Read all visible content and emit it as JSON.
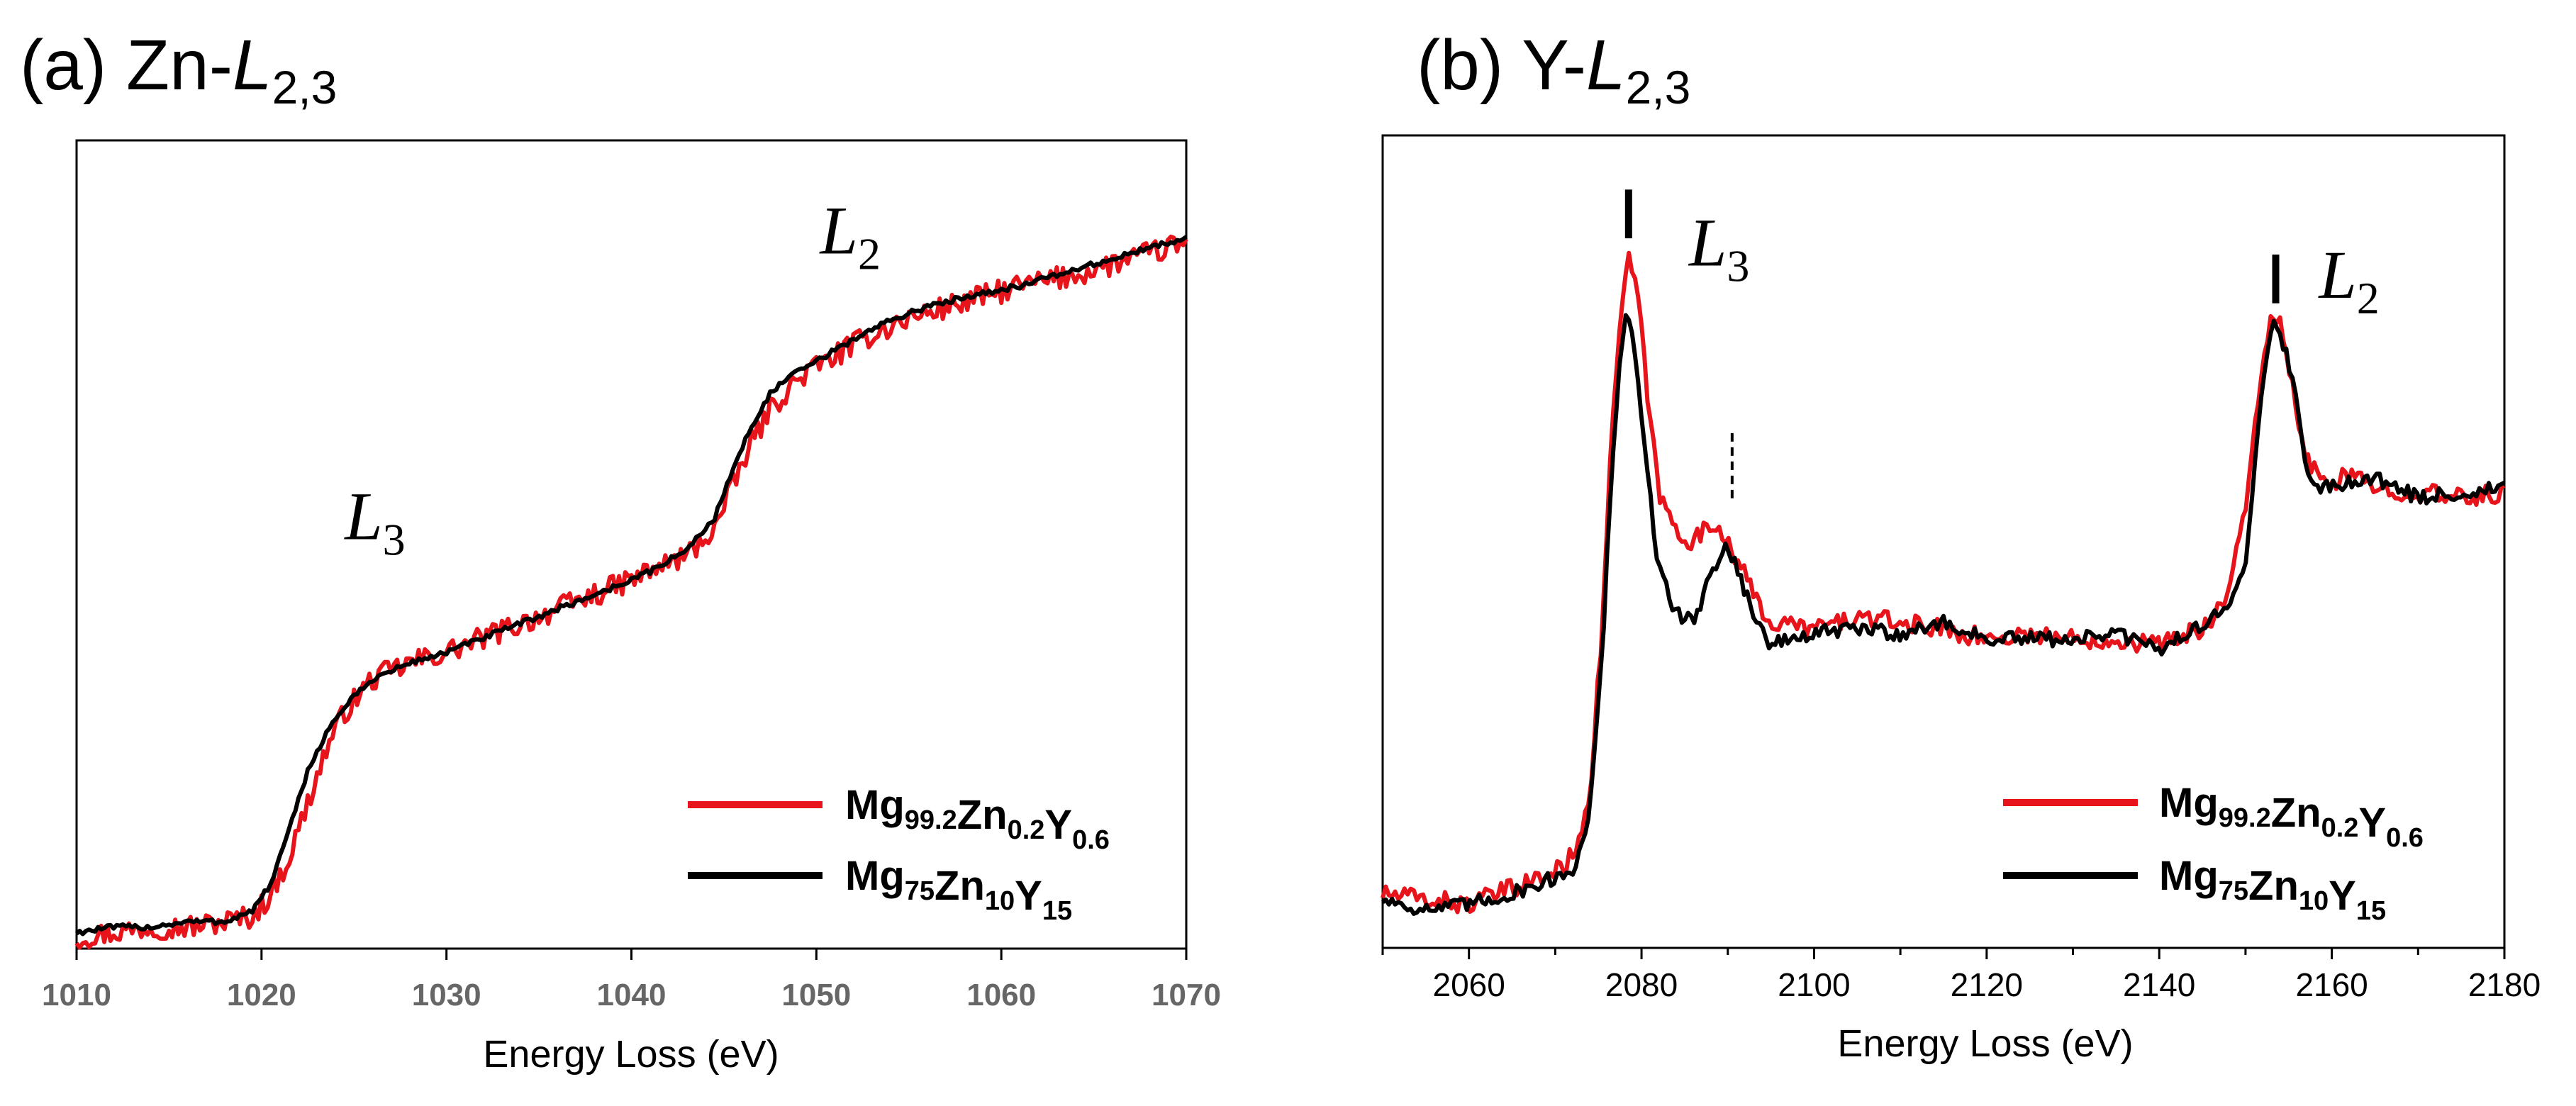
{
  "chart_data": [
    {
      "panel": "(a)",
      "title_prefix": "(a) Zn-",
      "title_italic": "L",
      "title_sub": "2,3",
      "type": "line",
      "xlabel": "Energy Loss (eV)",
      "ylabel": "",
      "xlim": [
        1010,
        1070
      ],
      "ylim": [
        0,
        1.5
      ],
      "xticks": [
        "1010",
        "1020",
        "1030",
        "1040",
        "1050",
        "1060",
        "1070"
      ],
      "grid": false,
      "legend_position": "bottom-right",
      "annotations": [
        {
          "main": "L",
          "sub": "3",
          "x": 1024.5,
          "y": 0.76
        },
        {
          "main": "L",
          "sub": "2",
          "x": 1050.2,
          "y": 1.29
        }
      ],
      "series": [
        {
          "name": "Mg99.2Zn0.2Y0.6",
          "legend_parts": [
            [
              "Mg",
              "99.2"
            ],
            [
              "Zn",
              "0.2"
            ],
            [
              "Y",
              "0.6"
            ]
          ],
          "color": "#e8141b",
          "noise": 0.022,
          "x": [
            1010,
            1012,
            1014,
            1016,
            1018,
            1019.5,
            1020.5,
            1021.5,
            1022.5,
            1023.5,
            1024.5,
            1026,
            1028,
            1030,
            1033,
            1036,
            1039,
            1041,
            1043,
            1044.5,
            1045.5,
            1046.5,
            1047.5,
            1048.5,
            1049.5,
            1051,
            1053,
            1055,
            1058,
            1061,
            1064,
            1067,
            1070
          ],
          "y": [
            0.02,
            0.03,
            0.04,
            0.04,
            0.05,
            0.06,
            0.1,
            0.17,
            0.27,
            0.37,
            0.44,
            0.5,
            0.53,
            0.55,
            0.59,
            0.63,
            0.67,
            0.7,
            0.73,
            0.78,
            0.86,
            0.94,
            1.0,
            1.04,
            1.07,
            1.1,
            1.14,
            1.17,
            1.2,
            1.23,
            1.25,
            1.28,
            1.31
          ]
        },
        {
          "name": "Mg75Zn10Y15",
          "legend_parts": [
            [
              "Mg",
              "75"
            ],
            [
              "Zn",
              "10"
            ],
            [
              "Y",
              "15"
            ]
          ],
          "color": "#000000",
          "noise": 0.005,
          "x": [
            1010,
            1012,
            1014,
            1016,
            1018,
            1019.5,
            1020.5,
            1021.5,
            1022.5,
            1023.5,
            1024.5,
            1026,
            1028,
            1030,
            1033,
            1036,
            1039,
            1041,
            1043,
            1044.5,
            1045.5,
            1046.5,
            1047.5,
            1048.5,
            1049.5,
            1051,
            1053,
            1055,
            1058,
            1061,
            1064,
            1067,
            1070
          ],
          "y": [
            0.03,
            0.04,
            0.04,
            0.05,
            0.05,
            0.07,
            0.12,
            0.22,
            0.33,
            0.4,
            0.45,
            0.5,
            0.53,
            0.55,
            0.59,
            0.63,
            0.67,
            0.7,
            0.74,
            0.8,
            0.89,
            0.97,
            1.03,
            1.06,
            1.08,
            1.11,
            1.15,
            1.18,
            1.21,
            1.23,
            1.26,
            1.29,
            1.32
          ]
        }
      ]
    },
    {
      "panel": "(b)",
      "title_prefix": "(b) Y-",
      "title_italic": "L",
      "title_sub": "2,3",
      "type": "line",
      "xlabel": "Energy Loss (eV)",
      "ylabel": "",
      "xlim": [
        2050,
        2180
      ],
      "ylim": [
        0,
        1.5
      ],
      "xticks": [
        "2060",
        "2080",
        "2100",
        "2120",
        "2140",
        "2160",
        "2180"
      ],
      "grid": false,
      "legend_position": "bottom-right",
      "annotations": [
        {
          "main": "L",
          "sub": "3",
          "x": 2085.5,
          "y": 1.26
        },
        {
          "main": "L",
          "sub": "2",
          "x": 2158.5,
          "y": 1.2
        }
      ],
      "markers": [
        {
          "x": 2078.5,
          "style": "solid",
          "y_from": 1.31,
          "y_to": 1.4
        },
        {
          "x": 2153.5,
          "style": "solid",
          "y_from": 1.19,
          "y_to": 1.28
        },
        {
          "x": 2090.5,
          "style": "dashed",
          "y_from": 0.83,
          "y_to": 0.96
        }
      ],
      "series": [
        {
          "name": "Mg99.2Zn0.2Y0.6",
          "legend_parts": [
            [
              "Mg",
              "99.2"
            ],
            [
              "Zn",
              "0.2"
            ],
            [
              "Y",
              "0.6"
            ]
          ],
          "color": "#e8141b",
          "noise": 0.018,
          "x": [
            2050,
            2055,
            2060,
            2065,
            2070,
            2072,
            2074,
            2075.5,
            2076.5,
            2077.5,
            2078.5,
            2079.5,
            2080.5,
            2082,
            2084,
            2086,
            2088,
            2089.5,
            2091,
            2093,
            2095,
            2100,
            2105,
            2110,
            2115,
            2120,
            2125,
            2130,
            2135,
            2140,
            2145,
            2148,
            2150,
            2151.5,
            2153,
            2154,
            2155.5,
            2157,
            2159,
            2162,
            2165,
            2170,
            2175,
            2180
          ],
          "y": [
            0.1,
            0.09,
            0.08,
            0.11,
            0.14,
            0.17,
            0.28,
            0.6,
            0.95,
            1.15,
            1.27,
            1.22,
            1.05,
            0.84,
            0.77,
            0.75,
            0.78,
            0.77,
            0.72,
            0.65,
            0.6,
            0.59,
            0.61,
            0.6,
            0.59,
            0.57,
            0.58,
            0.57,
            0.57,
            0.56,
            0.59,
            0.65,
            0.82,
            1.02,
            1.16,
            1.15,
            1.03,
            0.9,
            0.86,
            0.87,
            0.85,
            0.84,
            0.83,
            0.84
          ]
        },
        {
          "name": "Mg75Zn10Y15",
          "legend_parts": [
            [
              "Mg",
              "75"
            ],
            [
              "Zn",
              "10"
            ],
            [
              "Y",
              "15"
            ]
          ],
          "color": "#000000",
          "noise": 0.014,
          "x": [
            2050,
            2055,
            2060,
            2065,
            2070,
            2072,
            2074,
            2075.5,
            2076.5,
            2077.5,
            2078.3,
            2079.3,
            2080.5,
            2082,
            2084,
            2086,
            2088,
            2089.5,
            2091,
            2093,
            2095,
            2100,
            2105,
            2110,
            2115,
            2120,
            2125,
            2130,
            2135,
            2140,
            2145,
            2148,
            2150,
            2151.5,
            2153,
            2154,
            2155.5,
            2157,
            2159,
            2162,
            2165,
            2170,
            2175,
            2180
          ],
          "y": [
            0.09,
            0.07,
            0.08,
            0.1,
            0.13,
            0.14,
            0.25,
            0.55,
            0.88,
            1.08,
            1.17,
            1.1,
            0.9,
            0.7,
            0.62,
            0.6,
            0.69,
            0.74,
            0.71,
            0.61,
            0.56,
            0.58,
            0.59,
            0.58,
            0.6,
            0.57,
            0.57,
            0.57,
            0.58,
            0.55,
            0.6,
            0.62,
            0.72,
            0.97,
            1.15,
            1.14,
            1.05,
            0.88,
            0.85,
            0.86,
            0.87,
            0.83,
            0.84,
            0.85
          ]
        }
      ]
    }
  ]
}
